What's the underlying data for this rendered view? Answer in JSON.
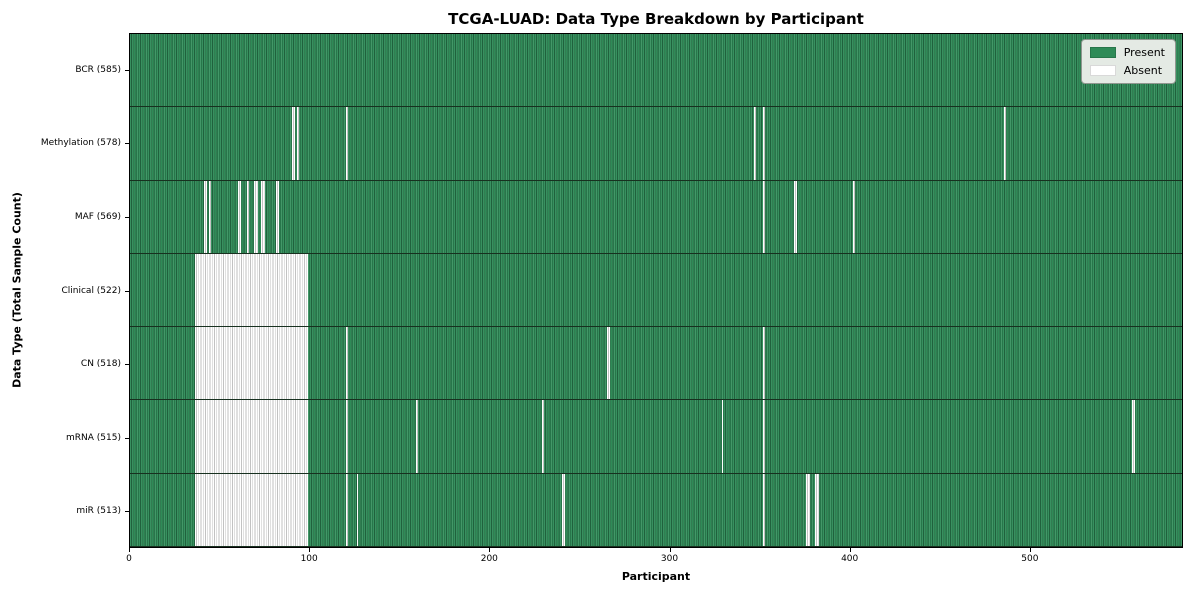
{
  "chart_data": {
    "type": "heatmap",
    "title": "TCGA-LUAD: Data Type Breakdown by Participant",
    "xlabel": "Participant",
    "ylabel": "Data Type (Total Sample Count)",
    "legend": [
      "Present",
      "Absent"
    ],
    "legend_position": "upper right",
    "colors": {
      "present": "#2e8b57",
      "absent": "#ffffff"
    },
    "n_participants": 585,
    "x_ticks": [
      0,
      100,
      200,
      300,
      400,
      500
    ],
    "xlim": [
      0,
      585
    ],
    "grid": false,
    "rows": [
      {
        "name": "bcr",
        "label": "BCR (585)",
        "present_count": 585,
        "absent_count": 0,
        "absent_ranges": []
      },
      {
        "name": "methylation",
        "label": "Methylation (578)",
        "present_count": 578,
        "absent_count": 7,
        "absent_ranges": [
          [
            90,
            91
          ],
          [
            93,
            93
          ],
          [
            120,
            120
          ],
          [
            347,
            347
          ],
          [
            352,
            352
          ],
          [
            486,
            486
          ]
        ]
      },
      {
        "name": "maf",
        "label": "MAF (569)",
        "present_count": 569,
        "absent_count": 16,
        "absent_ranges": [
          [
            41,
            42
          ],
          [
            44,
            44
          ],
          [
            60,
            61
          ],
          [
            65,
            65
          ],
          [
            69,
            70
          ],
          [
            73,
            74
          ],
          [
            81,
            82
          ],
          [
            352,
            352
          ],
          [
            369,
            370
          ],
          [
            402,
            402
          ]
        ]
      },
      {
        "name": "clinical",
        "label": "Clinical (522)",
        "present_count": 522,
        "absent_count": 63,
        "absent_ranges": [
          [
            36,
            98
          ]
        ]
      },
      {
        "name": "cn",
        "label": "CN (518)",
        "present_count": 518,
        "absent_count": 67,
        "absent_ranges": [
          [
            36,
            98
          ],
          [
            120,
            120
          ],
          [
            265,
            266
          ],
          [
            352,
            352
          ]
        ]
      },
      {
        "name": "mrna",
        "label": "mRNA (515)",
        "present_count": 515,
        "absent_count": 70,
        "absent_ranges": [
          [
            36,
            98
          ],
          [
            120,
            120
          ],
          [
            159,
            159
          ],
          [
            229,
            229
          ],
          [
            329,
            329
          ],
          [
            352,
            352
          ],
          [
            557,
            558
          ]
        ]
      },
      {
        "name": "mir",
        "label": "miR (513)",
        "present_count": 513,
        "absent_count": 72,
        "absent_ranges": [
          [
            36,
            98
          ],
          [
            120,
            120
          ],
          [
            126,
            126
          ],
          [
            240,
            241
          ],
          [
            352,
            352
          ],
          [
            376,
            377
          ],
          [
            381,
            382
          ]
        ]
      }
    ]
  }
}
